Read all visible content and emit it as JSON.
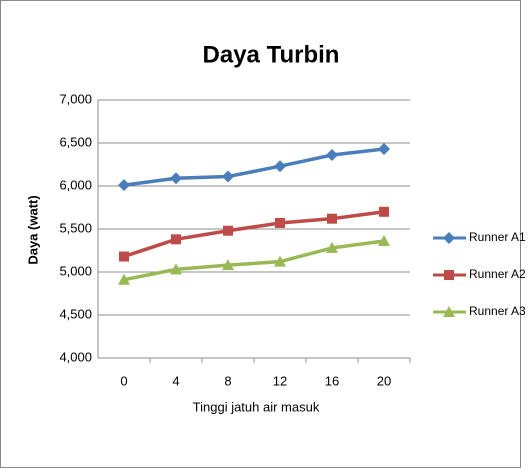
{
  "chart_data": {
    "type": "line",
    "title": "Daya Turbin",
    "x_label": "Tinggi jatuh air masuk",
    "y_label": "Daya (watt)",
    "categories": [
      "0",
      "4",
      "8",
      "12",
      "16",
      "20"
    ],
    "series": [
      {
        "name": "Runner A1",
        "color": "#4a7ebb",
        "marker": "diamond",
        "values": [
          6010,
          6090,
          6110,
          6230,
          6360,
          6430
        ]
      },
      {
        "name": "Runner A2",
        "color": "#be4b48",
        "marker": "square",
        "values": [
          5180,
          5380,
          5480,
          5570,
          5620,
          5700
        ]
      },
      {
        "name": "Runner A3",
        "color": "#98b954",
        "marker": "triangle",
        "values": [
          4910,
          5030,
          5080,
          5120,
          5280,
          5360
        ]
      }
    ],
    "ylim": [
      4000,
      7000
    ],
    "yticks": [
      {
        "value": 4000,
        "label": "4,000"
      },
      {
        "value": 4500,
        "label": "4,500"
      },
      {
        "value": 5000,
        "label": "5,000"
      },
      {
        "value": 5500,
        "label": "5,500"
      },
      {
        "value": 6000,
        "label": "6,000"
      },
      {
        "value": 6500,
        "label": "6,500"
      },
      {
        "value": 7000,
        "label": "7,000"
      }
    ],
    "grid": true,
    "legend": "right"
  }
}
